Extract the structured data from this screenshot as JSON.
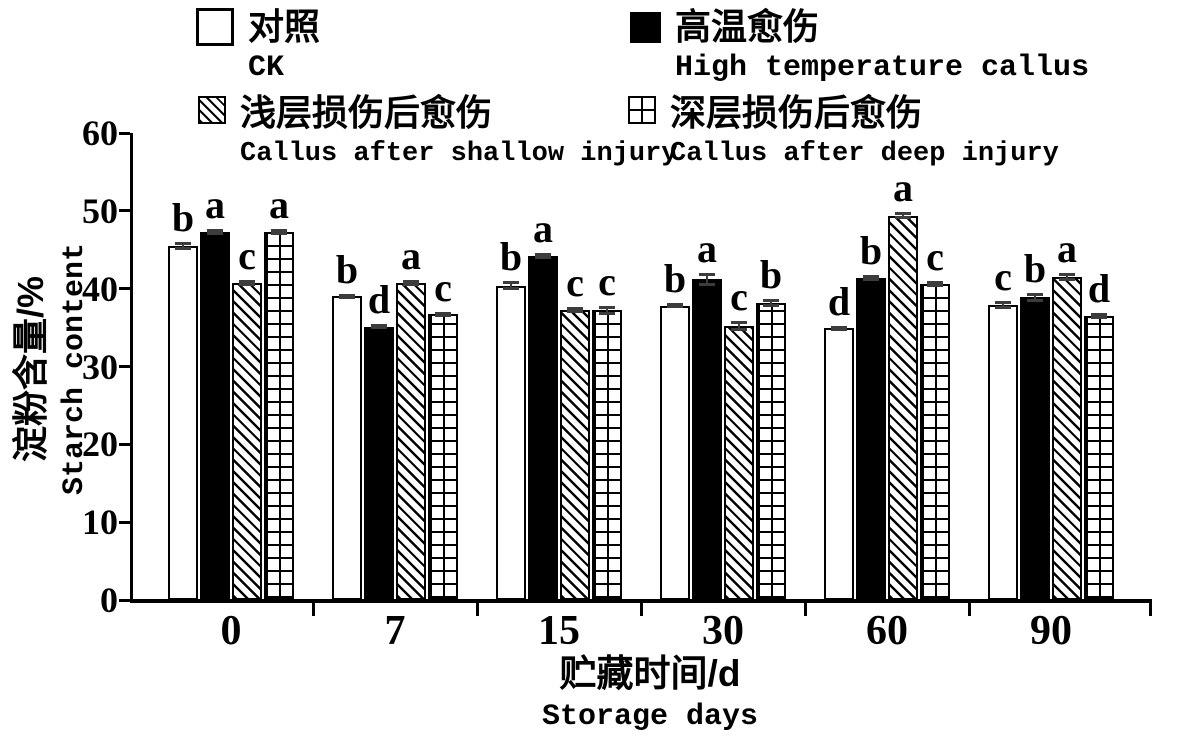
{
  "colors": {
    "foreground": "#000000",
    "background": "#ffffff",
    "error_bar": "#3c3c3c"
  },
  "chart_data": {
    "type": "bar",
    "categories": [
      "0",
      "7",
      "15",
      "30",
      "60",
      "90"
    ],
    "xlabel_zh": "贮藏时间/d",
    "xlabel_en": "Storage days",
    "ylabel_zh": "淀粉含量/%",
    "ylabel_en": "Starch content",
    "ylim": [
      0,
      60
    ],
    "yticks": [
      0,
      10,
      20,
      30,
      40,
      50,
      60
    ],
    "grid": false,
    "legend_position": "top",
    "series": [
      {
        "label_zh": "对照",
        "label_en": "CK",
        "pattern": "white",
        "values": [
          45.5,
          39.0,
          40.4,
          37.8,
          34.9,
          37.9
        ],
        "errors": [
          0.5,
          0.3,
          0.6,
          0.3,
          0.3,
          0.5
        ],
        "sig_letters": [
          "b",
          "b",
          "b",
          "b",
          "d",
          "c"
        ]
      },
      {
        "label_zh": "高温愈伤",
        "label_en": "High temperature callus",
        "pattern": "black",
        "values": [
          47.3,
          35.1,
          44.2,
          41.2,
          41.4,
          38.9
        ],
        "errors": [
          0.4,
          0.3,
          0.4,
          0.8,
          0.4,
          0.6
        ],
        "sig_letters": [
          "a",
          "d",
          "a",
          "a",
          "b",
          "b"
        ]
      },
      {
        "label_zh": "浅层损伤后愈伤",
        "label_en": "Callus after shallow injury",
        "pattern": "diag",
        "values": [
          40.7,
          40.7,
          37.3,
          35.2,
          49.4,
          41.5
        ],
        "errors": [
          0.4,
          0.4,
          0.4,
          0.6,
          0.5,
          0.5
        ],
        "sig_letters": [
          "c",
          "a",
          "c",
          "c",
          "a",
          "a"
        ]
      },
      {
        "label_zh": "深层损伤后愈伤",
        "label_en": "Callus after deep injury",
        "pattern": "grid4",
        "values": [
          47.3,
          36.7,
          37.2,
          38.2,
          40.6,
          36.5
        ],
        "errors": [
          0.4,
          0.3,
          0.6,
          0.5,
          0.4,
          0.4
        ],
        "sig_letters": [
          "a",
          "c",
          "c",
          "b",
          "c",
          "d"
        ]
      }
    ]
  }
}
